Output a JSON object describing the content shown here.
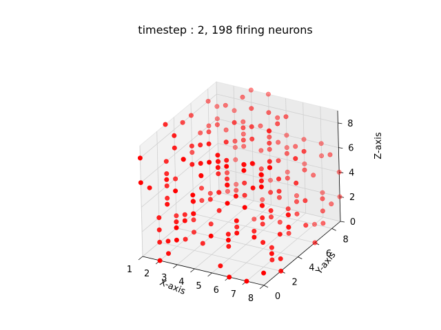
{
  "chart_data": {
    "type": "scatter",
    "projection": "3d",
    "title": "timestep : 2, 198 firing neurons",
    "xlabel": "X-axis",
    "ylabel": "Y-axis",
    "zlabel": "Z-axis",
    "xlim": [
      1,
      8
    ],
    "ylim": [
      0,
      9
    ],
    "zlim": [
      0,
      9
    ],
    "xticks": [
      "1",
      "2",
      "3",
      "4",
      "5",
      "6",
      "7",
      "8"
    ],
    "yticks": [
      "0",
      "2",
      "4",
      "6",
      "8"
    ],
    "zticks": [
      "0",
      "2",
      "4",
      "6",
      "8"
    ],
    "grid": true,
    "marker_color": "#ff0000",
    "firing_count": 198,
    "grid_size": [
      8,
      10,
      10
    ],
    "sampling": "approximate — firing neurons on integer lattice x 1–8, y 0–9, z 0–9"
  }
}
